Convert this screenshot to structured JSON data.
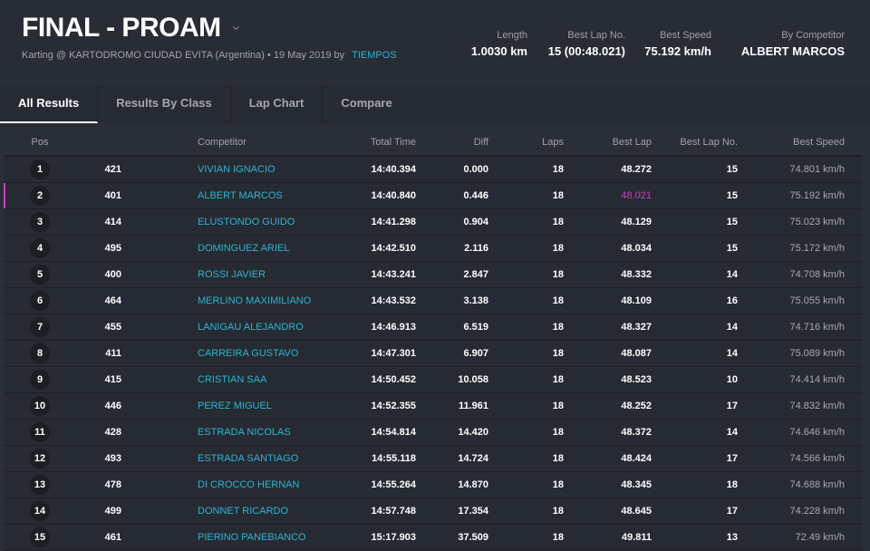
{
  "title": "FINAL - PROAM",
  "subtitle": "Karting @ KARTODROMO CIUDAD EVITA (Argentina) • 19 May 2019 by",
  "timing_link": "TIEMPOS",
  "stats": [
    {
      "label": "Length",
      "value": "1.0030 km"
    },
    {
      "label": "Best Lap No.",
      "value": "15 (00:48.021)"
    },
    {
      "label": "Best Speed",
      "value": "75.192 km/h"
    },
    {
      "label": "By Competitor",
      "value": "ALBERT MARCOS"
    }
  ],
  "tabs": [
    "All Results",
    "Results By Class",
    "Lap Chart",
    "Compare"
  ],
  "columns": [
    "Pos",
    "",
    "Competitor",
    "Total Time",
    "Diff",
    "Laps",
    "Best Lap",
    "Best Lap No.",
    "Best Speed"
  ],
  "accent": "#2bb6d0",
  "best_color": "#c93fc7",
  "rows": [
    [
      "1",
      "421",
      "VIVIAN IGNACIO",
      "14:40.394",
      "0.000",
      "18",
      "48.272",
      "15",
      "74.801 km/h"
    ],
    [
      "2",
      "401",
      "ALBERT MARCOS",
      "14:40.840",
      "0.446",
      "18",
      "48.021",
      "15",
      "75.192 km/h"
    ],
    [
      "3",
      "414",
      "ELUSTONDO GUIDO",
      "14:41.298",
      "0.904",
      "18",
      "48.129",
      "15",
      "75.023 km/h"
    ],
    [
      "4",
      "495",
      "DOMINGUEZ ARIEL",
      "14:42.510",
      "2.116",
      "18",
      "48.034",
      "15",
      "75.172 km/h"
    ],
    [
      "5",
      "400",
      "ROSSI JAVIER",
      "14:43.241",
      "2.847",
      "18",
      "48.332",
      "14",
      "74.708 km/h"
    ],
    [
      "6",
      "464",
      "MERLINO MAXIMILIANO",
      "14:43.532",
      "3.138",
      "18",
      "48.109",
      "16",
      "75.055 km/h"
    ],
    [
      "7",
      "455",
      "LANIGAU ALEJANDRO",
      "14:46.913",
      "6.519",
      "18",
      "48.327",
      "14",
      "74.716 km/h"
    ],
    [
      "8",
      "411",
      "CARREIRA GUSTAVO",
      "14:47.301",
      "6.907",
      "18",
      "48.087",
      "14",
      "75.089 km/h"
    ],
    [
      "9",
      "415",
      "CRISTIAN SAA",
      "14:50.452",
      "10.058",
      "18",
      "48.523",
      "10",
      "74.414 km/h"
    ],
    [
      "10",
      "446",
      "PEREZ MIGUEL",
      "14:52.355",
      "11.961",
      "18",
      "48.252",
      "17",
      "74.832 km/h"
    ],
    [
      "11",
      "428",
      "ESTRADA NICOLAS",
      "14:54.814",
      "14.420",
      "18",
      "48.372",
      "14",
      "74.646 km/h"
    ],
    [
      "12",
      "493",
      "ESTRADA SANTIAGO",
      "14:55.118",
      "14.724",
      "18",
      "48.424",
      "17",
      "74.566 km/h"
    ],
    [
      "13",
      "478",
      "DI CROCCO HERNAN",
      "14:55.264",
      "14.870",
      "18",
      "48.345",
      "18",
      "74.688 km/h"
    ],
    [
      "14",
      "499",
      "DONNET RICARDO",
      "14:57.748",
      "17.354",
      "18",
      "48.645",
      "17",
      "74.228 km/h"
    ],
    [
      "15",
      "461",
      "PIERINO PANEBIANCO",
      "15:17.903",
      "37.509",
      "18",
      "49.811",
      "13",
      "72.49 km/h"
    ]
  ]
}
